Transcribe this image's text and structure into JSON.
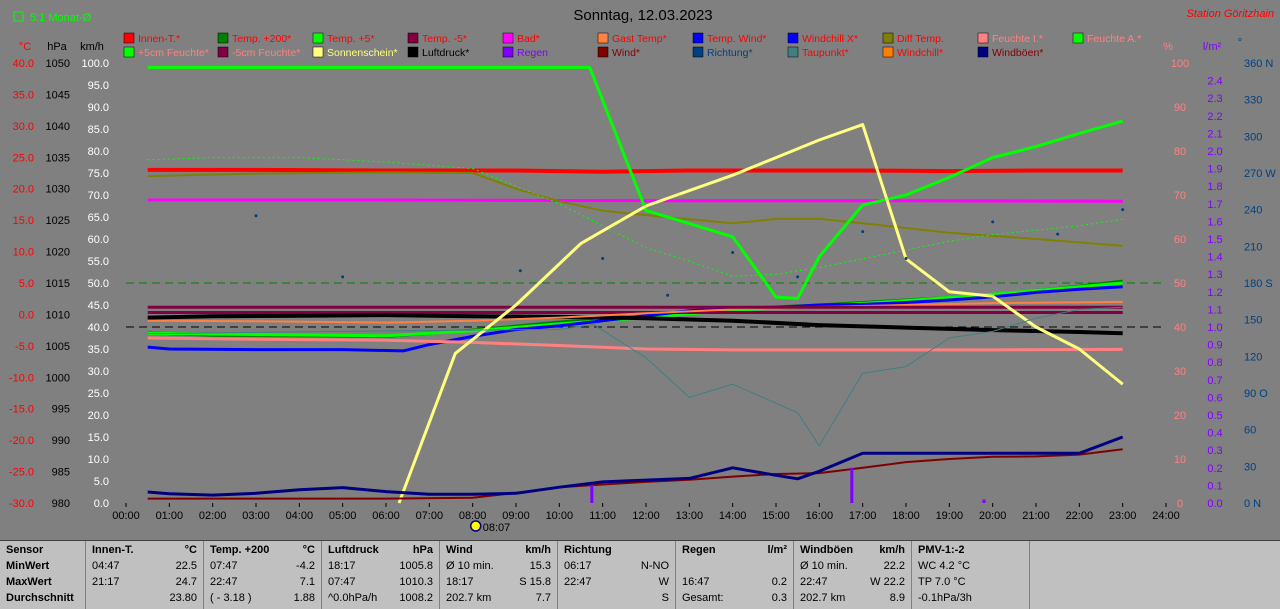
{
  "header": {
    "legend_monthly": "5:1 Monat-Ø",
    "date": "Sonntag, 12.03.2023",
    "station": "Station Göritzhain"
  },
  "axes": {
    "unit_temp": "°C",
    "unit_pressure": "hPa",
    "unit_wind": "km/h",
    "unit_percent": "%",
    "unit_rain": "l/m²",
    "unit_direction": "°",
    "temp_ticks": [
      "40.0",
      "35.0",
      "30.0",
      "25.0",
      "20.0",
      "15.0",
      "10.0",
      "5.0",
      "0.0",
      "-5.0",
      "-10.0",
      "-15.0",
      "-20.0",
      "-25.0",
      "-30.0"
    ],
    "pressure_ticks": [
      "1050",
      "1045",
      "1040",
      "1035",
      "1030",
      "1025",
      "1020",
      "1015",
      "1010",
      "1005",
      "1000",
      "995",
      "990",
      "985",
      "980"
    ],
    "wind_ticks": [
      "100.0",
      "95.0",
      "90.0",
      "85.0",
      "80.0",
      "75.0",
      "70.0",
      "65.0",
      "60.0",
      "55.0",
      "50.0",
      "45.0",
      "40.0",
      "35.0",
      "30.0",
      "25.0",
      "20.0",
      "15.0",
      "10.0",
      "5.0",
      "0.0"
    ],
    "percent_ticks": [
      "100",
      "90",
      "80",
      "70",
      "60",
      "50",
      "40",
      "30",
      "20",
      "10",
      "0"
    ],
    "rain_ticks": [
      "2.4",
      "2.3",
      "2.2",
      "2.1",
      "2.0",
      "1.9",
      "1.8",
      "1.7",
      "1.6",
      "1.5",
      "1.4",
      "1.3",
      "1.2",
      "1.1",
      "1.0",
      "0.9",
      "0.8",
      "0.7",
      "0.6",
      "0.5",
      "0.4",
      "0.3",
      "0.2",
      "0.1",
      "0.0"
    ],
    "direction_ticks": [
      "360 N",
      "330",
      "300",
      "270 W",
      "240",
      "210",
      "180 S",
      "150",
      "120",
      "90 O",
      "60",
      "30",
      "0 N"
    ],
    "time_ticks": [
      "00:00",
      "01:00",
      "02:00",
      "03:00",
      "04:00",
      "05:00",
      "06:00",
      "07:00",
      "08:00",
      "09:00",
      "10:00",
      "11:00",
      "12:00",
      "13:00",
      "14:00",
      "15:00",
      "16:00",
      "17:00",
      "18:00",
      "19:00",
      "20:00",
      "21:00",
      "22:00",
      "23:00",
      "24:00"
    ],
    "sunrise": "08:07"
  },
  "legend": [
    {
      "label": "Innen-T.*",
      "color": "#ff0000",
      "text_color": "#ff0000"
    },
    {
      "label": "Temp. +200*",
      "color": "#008000",
      "text_color": "#ff0000"
    },
    {
      "label": "Temp. +5*",
      "color": "#00ff00",
      "text_color": "#ff0000"
    },
    {
      "label": "Temp. -5*",
      "color": "#800040",
      "text_color": "#ff0000"
    },
    {
      "label": "Bad*",
      "color": "#ff00ff",
      "text_color": "#ff0000"
    },
    {
      "label": "Gast Temp*",
      "color": "#ff8040",
      "text_color": "#ff0000"
    },
    {
      "label": "Temp. Wind*",
      "color": "#0000ff",
      "text_color": "#ff0000"
    },
    {
      "label": "Windchill X*",
      "color": "#0000ff",
      "text_color": "#ff0000"
    },
    {
      "label": "Diff Temp.",
      "color": "#808000",
      "text_color": "#ff0000"
    },
    {
      "label": "Feuchte I.*",
      "color": "#ff8080",
      "text_color": "#ff8080"
    },
    {
      "label": "Feuchte A.*",
      "color": "#00ff00",
      "text_color": "#ff8080"
    },
    {
      "label": "+5cm Feuchte*",
      "color": "#00ff00",
      "text_color": "#ff8080"
    },
    {
      "label": "-5cm Feuchte*",
      "color": "#800040",
      "text_color": "#ff8080"
    },
    {
      "label": "Sonnenschein*",
      "color": "#ffff80",
      "text_color": "#ffff80"
    },
    {
      "label": "Luftdruck*",
      "color": "#000000",
      "text_color": "#000000"
    },
    {
      "label": "Regen",
      "color": "#8000ff",
      "text_color": "#8000ff"
    },
    {
      "label": "Wind*",
      "color": "#800000",
      "text_color": "#800000"
    },
    {
      "label": "Richtung*",
      "color": "#004080",
      "text_color": "#004080"
    },
    {
      "label": "Taupunkt*",
      "color": "#408080",
      "text_color": "#ff0000"
    },
    {
      "label": "Windchill*",
      "color": "#ff8000",
      "text_color": "#ff0000"
    },
    {
      "label": "Windböen*",
      "color": "#000080",
      "text_color": "#800000"
    }
  ],
  "colors": {
    "background": "#808080",
    "temp_axis": "#ff0000",
    "pressure_axis": "#000000",
    "wind_axis": "#ffffff",
    "percent_axis": "#ff8080",
    "rain_axis": "#8000ff",
    "direction_axis": "#004080"
  },
  "chart_data": {
    "type": "line",
    "xlabel": "",
    "x_range_hours": [
      0,
      24
    ],
    "temp_range": [
      -30,
      40
    ],
    "pressure_range": [
      980,
      1050
    ],
    "wind_range": [
      0,
      100
    ],
    "percent_range": [
      0,
      100
    ],
    "rain_range": [
      0,
      2.5
    ],
    "direction_range": [
      0,
      360
    ],
    "reference_lines": [
      {
        "axis": "temp",
        "value": 5.0,
        "color": "#008000",
        "style": "dashed"
      },
      {
        "axis": "temp",
        "value": -2.0,
        "color": "#000000",
        "style": "dashed"
      }
    ],
    "series": [
      {
        "name": "Innen-T.*",
        "axis": "temp",
        "color": "#ff0000",
        "width": 4,
        "x": [
          0.5,
          3,
          6,
          9,
          11,
          13,
          15,
          17,
          19,
          21,
          23
        ],
        "y": [
          23.0,
          23.0,
          22.9,
          22.9,
          22.7,
          22.9,
          22.9,
          22.9,
          22.8,
          22.9,
          22.9
        ]
      },
      {
        "name": "Bad*",
        "axis": "temp",
        "color": "#ff00ff",
        "width": 3,
        "x": [
          0.5,
          6,
          12,
          18,
          23
        ],
        "y": [
          18.2,
          18.2,
          18.1,
          18.1,
          18.0
        ]
      },
      {
        "name": "Temp. +200*",
        "axis": "temp",
        "color": "#008000",
        "width": 3,
        "x": [
          0.5,
          2,
          4,
          6,
          8,
          10,
          12,
          14,
          16,
          18,
          20,
          22,
          23
        ],
        "y": [
          -2.9,
          -3.3,
          -3.4,
          -3.5,
          -2.5,
          -1.2,
          -0.3,
          0.9,
          1.5,
          2.3,
          3.1,
          4.5,
          5.3
        ]
      },
      {
        "name": "Temp. +5*",
        "axis": "temp",
        "color": "#00ff00",
        "width": 3,
        "x": [
          0.5,
          3,
          6,
          8,
          10,
          12,
          14,
          16,
          18,
          20,
          22,
          23
        ],
        "y": [
          -3.0,
          -3.2,
          -3.4,
          -2.6,
          -1.5,
          -0.5,
          0.7,
          1.3,
          2.2,
          3.2,
          4.4,
          5.0
        ]
      },
      {
        "name": "Temp. -5*",
        "axis": "temp",
        "color": "#800040",
        "width": 3,
        "x": [
          0.5,
          23
        ],
        "y": [
          0.3,
          0.3
        ]
      },
      {
        "name": "Temp. Wind*",
        "axis": "temp",
        "color": "#0000ff",
        "width": 3,
        "x": [
          0.5,
          1,
          3,
          5,
          6.4,
          7,
          8,
          9,
          10,
          11,
          12,
          13,
          14,
          15,
          16,
          17,
          18,
          19,
          20,
          21,
          22,
          23
        ],
        "y": [
          -5.2,
          -5.5,
          -5.6,
          -5.6,
          -5.8,
          -4.8,
          -3.5,
          -2.4,
          -1.8,
          -1.0,
          -0.2,
          0.6,
          1.0,
          1.1,
          1.5,
          1.6,
          1.9,
          2.3,
          2.8,
          3.5,
          4.0,
          4.4
        ]
      },
      {
        "name": "Luftdruck*",
        "axis": "pressure",
        "color": "#000000",
        "width": 4,
        "x": [
          0.5,
          2,
          4,
          6,
          8,
          10,
          12,
          14,
          16,
          18,
          20,
          22,
          23
        ],
        "y": [
          1009.5,
          1009.7,
          1009.8,
          1009.9,
          1009.7,
          1009.6,
          1009.4,
          1009.0,
          1008.3,
          1007.9,
          1007.5,
          1007.2,
          1007.0
        ]
      },
      {
        "name": "Gast Temp*",
        "axis": "temp",
        "color": "#ff8040",
        "width": 2,
        "x": [
          0.5,
          3,
          6,
          8,
          10,
          12,
          14,
          16,
          18,
          20,
          23
        ],
        "y": [
          -1.0,
          -1.1,
          -1.3,
          -1.0,
          -0.5,
          0.2,
          0.8,
          1.2,
          1.5,
          1.8,
          2.0
        ]
      },
      {
        "name": "Diff Temp.",
        "axis": "temp",
        "color": "#808000",
        "width": 2,
        "x": [
          0.5,
          3,
          6,
          8,
          9,
          10,
          11,
          12,
          14,
          15,
          16,
          17,
          19,
          21,
          23
        ],
        "y": [
          22.0,
          22.4,
          22.6,
          22.5,
          20.0,
          18.0,
          16.5,
          15.8,
          14.5,
          15.2,
          15.2,
          14.5,
          13.0,
          12.0,
          10.9
        ]
      },
      {
        "name": "-5cm Feuchte*",
        "axis": "percent",
        "color": "#800040",
        "width": 3,
        "x": [
          0.5,
          23
        ],
        "y": [
          44.5,
          44.5
        ]
      },
      {
        "name": "Feuchte I.*",
        "axis": "percent",
        "color": "#ff8080",
        "width": 3,
        "x": [
          0.5,
          3,
          6,
          8,
          10,
          12,
          14,
          16,
          18,
          20,
          23
        ],
        "y": [
          37.5,
          37.2,
          37.0,
          36.5,
          35.8,
          35.0,
          34.8,
          34.8,
          34.8,
          34.8,
          34.9
        ]
      },
      {
        "name": "Feuchte A.*",
        "axis": "percent",
        "color": "#00ff00",
        "width": 3,
        "x": [
          0.5,
          5,
          10,
          10.7,
          12,
          13.5,
          14,
          15,
          15.5,
          16,
          17,
          18,
          19,
          20,
          21,
          22,
          23
        ],
        "y": [
          99.0,
          99.0,
          99.0,
          99.0,
          66.5,
          62.0,
          60.5,
          46.8,
          46.5,
          56.0,
          67.7,
          70.0,
          74.0,
          78.5,
          81.0,
          84.0,
          86.8
        ]
      },
      {
        "name": "+5cm Feuchte*",
        "axis": "percent",
        "color": "#00ff00",
        "width": 1,
        "style": "dotted",
        "x": [
          0.5,
          2,
          4,
          6,
          8,
          9,
          10,
          11,
          12,
          13,
          14,
          15,
          16,
          17,
          18,
          19,
          20,
          21,
          22,
          23
        ],
        "y": [
          78.0,
          78.5,
          78.5,
          77.5,
          76.0,
          72.0,
          68.0,
          63.0,
          58.0,
          55.0,
          51.5,
          52.0,
          53.5,
          55.5,
          57.5,
          59.5,
          61.0,
          62.0,
          63.0,
          64.5
        ]
      },
      {
        "name": "Sonnenschein*",
        "axis": "percent",
        "color": "#ffff80",
        "width": 3,
        "x": [
          6.3,
          7.6,
          9,
          10.5,
          12,
          14,
          15,
          16,
          17,
          18,
          19,
          20,
          21,
          22,
          23
        ],
        "y": [
          0,
          34.0,
          45.0,
          59.0,
          67.5,
          74.5,
          78.5,
          82.5,
          86.0,
          55.5,
          48.0,
          47.0,
          40.0,
          35.0,
          27.0
        ]
      },
      {
        "name": "Taupunkt*",
        "axis": "percent",
        "color": "#408080",
        "width": 1,
        "x": [
          0.5,
          5,
          10,
          10.8,
          12,
          13,
          14,
          15.5,
          16,
          17,
          18,
          19,
          20,
          21,
          22,
          23
        ],
        "y": [
          38.5,
          39.0,
          39.5,
          40.5,
          33.0,
          24.0,
          27.0,
          20.5,
          13.0,
          29.5,
          31.0,
          37.5,
          39.0,
          42.0,
          44.0,
          44.5
        ]
      },
      {
        "name": "Wind*",
        "axis": "wind",
        "color": "#800000",
        "width": 2,
        "x": [
          0.5,
          2,
          4,
          6,
          8,
          9,
          10,
          11,
          12,
          13,
          14,
          15,
          16,
          17,
          18,
          19,
          20,
          21,
          22,
          23
        ],
        "y": [
          1.0,
          1.0,
          1.0,
          1.0,
          1.2,
          2.3,
          3.6,
          4.2,
          4.8,
          5.3,
          6.0,
          6.6,
          6.8,
          8.0,
          9.3,
          10.0,
          10.5,
          10.6,
          11.0,
          12.2
        ]
      },
      {
        "name": "Windböen*",
        "axis": "wind",
        "color": "#000080",
        "width": 3,
        "x": [
          0.5,
          1,
          2,
          3,
          4,
          5,
          6,
          7,
          8,
          9,
          10,
          11,
          12,
          13,
          14,
          15,
          15.5,
          16,
          17,
          18,
          19,
          20,
          21,
          22,
          23
        ],
        "y": [
          2.5,
          2.1,
          1.8,
          2.2,
          3.0,
          3.5,
          2.6,
          2.0,
          2.0,
          2.2,
          3.6,
          4.8,
          5.2,
          5.6,
          8.0,
          6.3,
          5.5,
          7.2,
          11.3,
          11.3,
          11.3,
          11.3,
          11.3,
          11.3,
          15.0
        ]
      },
      {
        "name": "Richtung*",
        "axis": "direction",
        "color": "#004080",
        "width": 0,
        "style": "points",
        "x": [
          3,
          5,
          9.1,
          11,
          12.5,
          14,
          15.5,
          17,
          18,
          20,
          21.5,
          23
        ],
        "y": [
          235,
          185,
          190,
          200,
          170,
          205,
          185,
          222,
          200,
          230,
          220,
          240
        ]
      }
    ],
    "rain_bars": [
      {
        "x": 10.75,
        "value": 0.1
      },
      {
        "x": 16.75,
        "value": 0.2
      },
      {
        "x": 19.8,
        "value": 0.02
      }
    ]
  },
  "stats": {
    "row_labels": {
      "sensor": "Sensor",
      "min": "MinWert",
      "max": "MaxWert",
      "avg": "Durchschnitt"
    },
    "blocks": [
      {
        "title": "Innen-T.",
        "unit": "°C",
        "rows": [
          [
            "04:47",
            "22.5"
          ],
          [
            "21:17",
            "24.7"
          ],
          [
            "",
            "23.80"
          ]
        ]
      },
      {
        "title": "Temp. +200",
        "unit": "°C",
        "rows": [
          [
            "07:47",
            "-4.2"
          ],
          [
            "22:47",
            "7.1"
          ],
          [
            "( - 3.18 )",
            "1.88"
          ]
        ]
      },
      {
        "title": "Luftdruck",
        "unit": "hPa",
        "rows": [
          [
            "18:17",
            "1005.8"
          ],
          [
            "07:47",
            "1010.3"
          ],
          [
            "^0.0hPa/h",
            "1008.2"
          ]
        ]
      },
      {
        "title": "Wind",
        "unit": "km/h",
        "rows": [
          [
            "Ø 10 min.",
            "15.3"
          ],
          [
            "18:17",
            "S 15.8"
          ],
          [
            "202.7 km",
            "7.7"
          ]
        ]
      },
      {
        "title": "Richtung",
        "unit": "",
        "rows": [
          [
            "06:17",
            "N-NO"
          ],
          [
            "22:47",
            "W"
          ],
          [
            "",
            "S"
          ]
        ]
      },
      {
        "title": "Regen",
        "unit": "l/m²",
        "rows": [
          [
            "",
            ""
          ],
          [
            "16:47",
            "0.2"
          ],
          [
            "Gesamt:",
            "0.3"
          ]
        ]
      },
      {
        "title": "Windböen",
        "unit": "km/h",
        "rows": [
          [
            "Ø 10 min.",
            "22.2"
          ],
          [
            "22:47",
            "W 22.2"
          ],
          [
            "202.7 km",
            "8.9"
          ]
        ]
      },
      {
        "title": "PMV-1:-2",
        "unit": "",
        "rows": [
          [
            "WC 4.2 °C",
            ""
          ],
          [
            "TP 7.0 °C",
            ""
          ],
          [
            "-0.1hPa/3h",
            ""
          ]
        ]
      }
    ]
  }
}
